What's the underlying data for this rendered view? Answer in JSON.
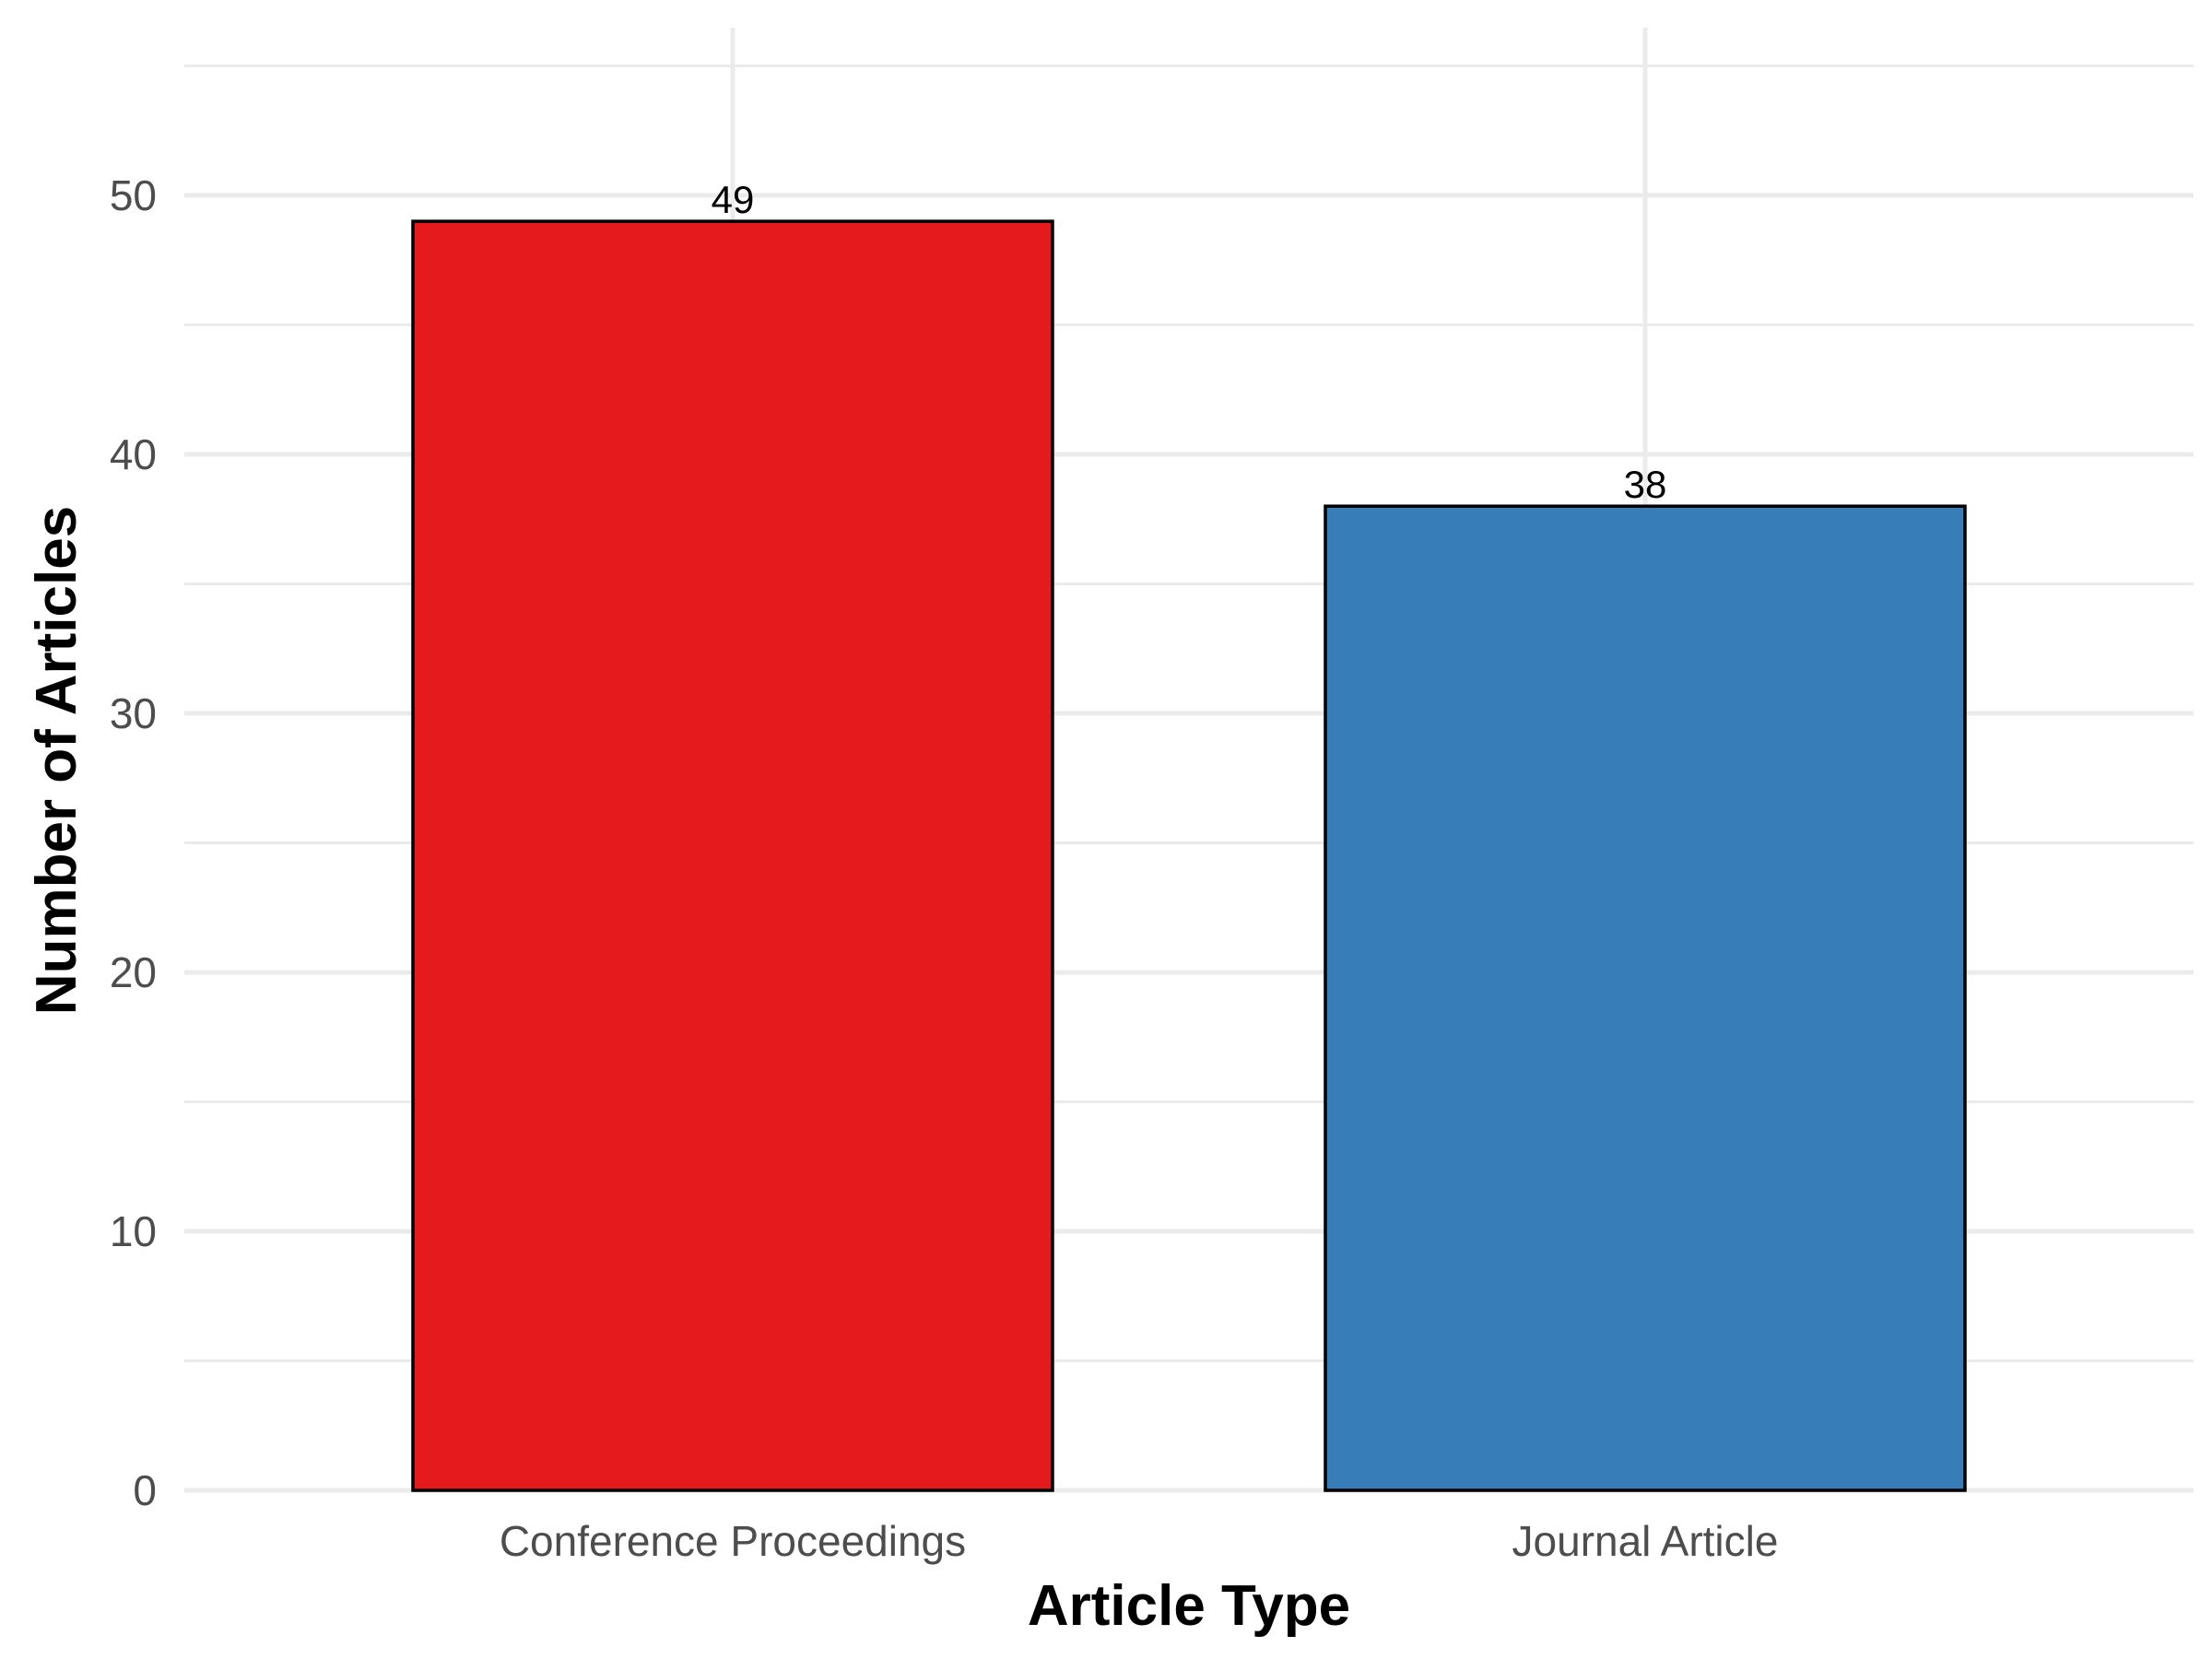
{
  "chart_data": {
    "type": "bar",
    "categories": [
      "Conference Proceedings",
      "Journal Article"
    ],
    "values": [
      49,
      38
    ],
    "colors": [
      "#E41A1C",
      "#377EB8"
    ],
    "data_labels": [
      "49",
      "38"
    ],
    "title": "",
    "xlabel": "Article Type",
    "ylabel": "Number of Articles",
    "ylim": [
      0,
      55
    ],
    "yticks": [
      0,
      10,
      20,
      30,
      40,
      50
    ],
    "yticks_labels": [
      "0",
      "10",
      "20",
      "30",
      "40",
      "50"
    ],
    "grid": true,
    "legend": "none"
  }
}
